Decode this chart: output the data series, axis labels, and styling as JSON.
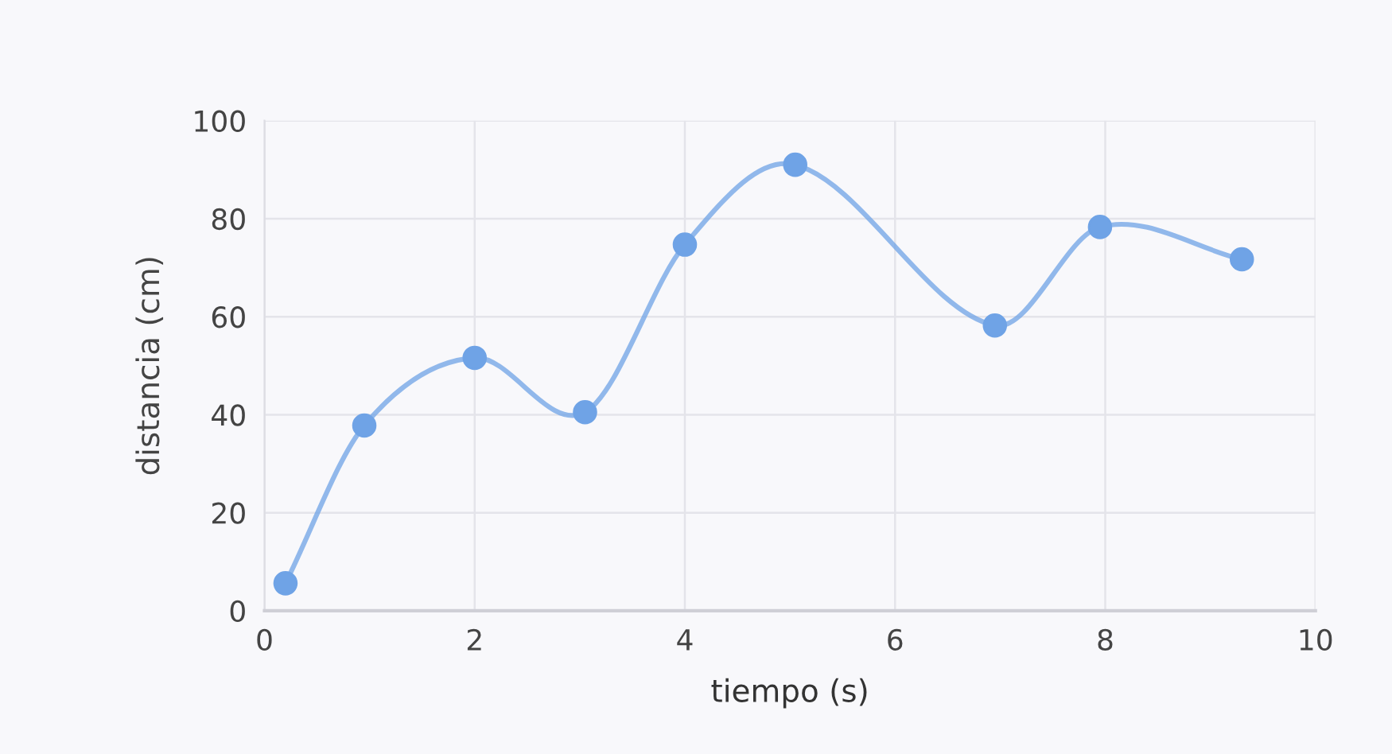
{
  "chart_data": {
    "type": "line",
    "xlabel": "tiempo (s)",
    "ylabel": "distancia (cm)",
    "x": [
      0.2,
      0.95,
      2.0,
      3.05,
      4.0,
      5.05,
      6.95,
      7.95,
      9.3
    ],
    "series": [
      {
        "color": "#6fa3e6",
        "values": [
          5.6,
          37.8,
          51.6,
          40.5,
          74.7,
          91,
          58.2,
          78.3,
          71.7
        ]
      }
    ],
    "xlim": [
      0,
      10
    ],
    "xticks": [
      0,
      2,
      4,
      6,
      8,
      10
    ],
    "ylim": [
      0,
      100
    ],
    "yticks": [
      0,
      20,
      40,
      60,
      80,
      100
    ],
    "grid": true,
    "marker": "circle",
    "line_style": "solid"
  }
}
